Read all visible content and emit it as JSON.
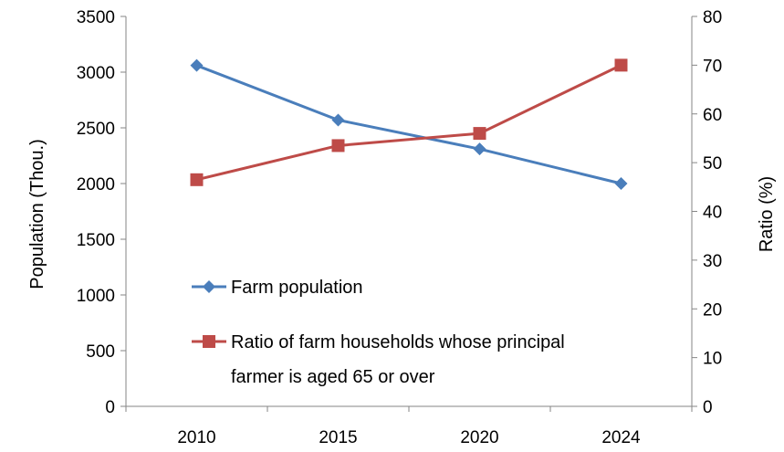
{
  "chart_data": {
    "type": "line",
    "categories": [
      "2010",
      "2015",
      "2020",
      "2024"
    ],
    "ylabel_left": "Population (Thou.)",
    "ylabel_right": "Ratio (%)",
    "ylim_left": [
      0,
      3500
    ],
    "ylim_right": [
      0,
      80
    ],
    "yticks_left": [
      "0",
      "500",
      "1000",
      "1500",
      "2000",
      "2500",
      "3000",
      "3500"
    ],
    "yticks_right": [
      "0",
      "10",
      "20",
      "30",
      "40",
      "50",
      "60",
      "70",
      "80"
    ],
    "grid": false,
    "legend_position": "center-left",
    "series": [
      {
        "name": "Farm population",
        "axis": "left",
        "marker": "diamond",
        "color": "#4A7EBB",
        "values": [
          3060,
          2570,
          2310,
          2000
        ]
      },
      {
        "name": "Ratio of farm households whose principal farmer is aged 65 or over",
        "legend_lines": [
          "Ratio of farm households whose principal",
          "farmer is aged 65 or over"
        ],
        "axis": "right",
        "marker": "square",
        "color": "#BE4B48",
        "values": [
          46.5,
          53.5,
          56,
          70
        ]
      }
    ]
  }
}
